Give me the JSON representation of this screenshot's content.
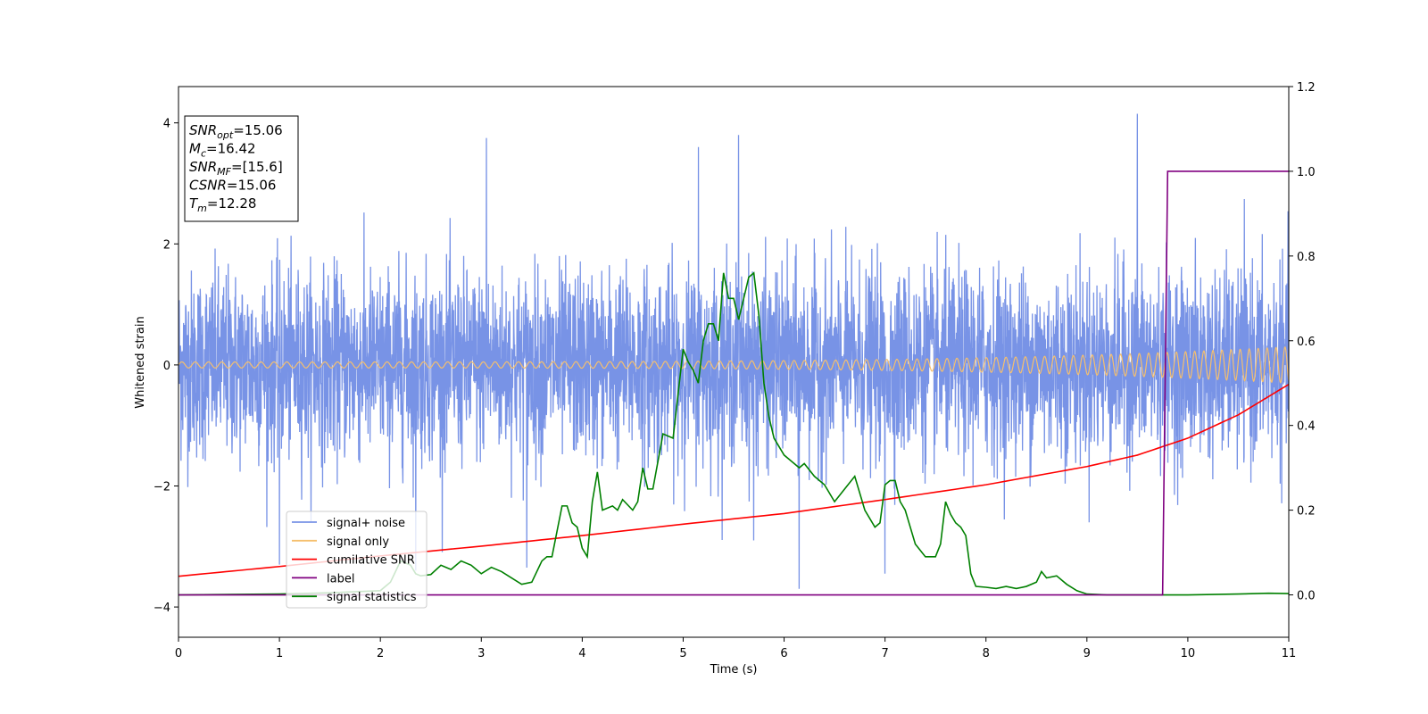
{
  "chart_data": {
    "type": "line",
    "xlabel": "Time (s)",
    "ylabel": "Whitened strain",
    "xlim": [
      0,
      11
    ],
    "ylim": [
      -4.5,
      4.6
    ],
    "y2lim": [
      -0.1,
      1.2
    ],
    "x_ticks": [
      "0",
      "1",
      "2",
      "3",
      "4",
      "5",
      "6",
      "7",
      "8",
      "9",
      "10",
      "11"
    ],
    "y_ticks": [
      "4",
      "2",
      "0",
      "−2",
      "−4"
    ],
    "y2_ticks": [
      "1.2",
      "1.0",
      "0.8",
      "0.6",
      "0.4",
      "0.2",
      "0.0"
    ],
    "grid": false,
    "legend_position": "lower-left",
    "info_box": {
      "position": "top-left",
      "lines": [
        {
          "symbol": "SNR",
          "sub": "opt",
          "text": "=15.06"
        },
        {
          "symbol": "M",
          "sub": "c",
          "text": "=16.42"
        },
        {
          "symbol": "SNR",
          "sub": "MF",
          "text": "=[15.6]"
        },
        {
          "symbol": "CSNR",
          "sub": "",
          "text": "=15.06"
        },
        {
          "symbol": "T",
          "sub": "m",
          "text": "=12.28"
        }
      ]
    },
    "series": [
      {
        "name": "signal+ noise",
        "color": "#7893e6",
        "axis": "left",
        "kind": "noise",
        "typical_range": [
          -2.0,
          2.0
        ],
        "extremes": [
          [
            5.55,
            3.8
          ],
          [
            3.05,
            3.75
          ],
          [
            9.5,
            4.15
          ],
          [
            5.15,
            3.6
          ],
          [
            6.15,
            -3.7
          ],
          [
            1.0,
            -3.3
          ],
          [
            7.0,
            -3.45
          ],
          [
            2.35,
            -3.4
          ],
          [
            3.45,
            -3.35
          ],
          [
            5.7,
            -2.9
          ]
        ]
      },
      {
        "name": "signal only",
        "color": "#f5bf6e",
        "axis": "left",
        "kind": "chirp",
        "amplitude_start": 0.05,
        "amplitude_end": 0.3
      },
      {
        "name": "cumilative SNR",
        "color": "#ff0000",
        "axis": "right",
        "kind": "cumulative",
        "x": [
          0,
          1,
          2,
          3,
          4,
          5,
          6,
          7,
          8,
          9,
          9.5,
          10,
          10.5,
          11
        ],
        "y": [
          0.044,
          0.067,
          0.092,
          0.115,
          0.14,
          0.167,
          0.192,
          0.225,
          0.26,
          0.303,
          0.33,
          0.37,
          0.425,
          0.497
        ]
      },
      {
        "name": "label",
        "color": "#800080",
        "axis": "right",
        "kind": "step",
        "x": [
          0,
          9.75,
          9.8,
          11
        ],
        "y": [
          0.0,
          0.0,
          1.0,
          1.0
        ]
      },
      {
        "name": "signal statistics",
        "color": "#008000",
        "axis": "right",
        "kind": "line",
        "x": [
          0,
          1.0,
          1.5,
          2.0,
          2.1,
          2.2,
          2.3,
          2.35,
          2.4,
          2.5,
          2.6,
          2.7,
          2.8,
          2.9,
          3.0,
          3.1,
          3.2,
          3.3,
          3.4,
          3.5,
          3.6,
          3.65,
          3.7,
          3.8,
          3.85,
          3.9,
          3.95,
          4.0,
          4.05,
          4.1,
          4.15,
          4.2,
          4.3,
          4.35,
          4.4,
          4.5,
          4.55,
          4.6,
          4.65,
          4.7,
          4.8,
          4.9,
          5.0,
          5.05,
          5.1,
          5.15,
          5.2,
          5.25,
          5.3,
          5.35,
          5.4,
          5.45,
          5.5,
          5.55,
          5.6,
          5.65,
          5.7,
          5.75,
          5.8,
          5.85,
          5.9,
          5.95,
          6.0,
          6.05,
          6.1,
          6.15,
          6.2,
          6.3,
          6.4,
          6.5,
          6.6,
          6.7,
          6.8,
          6.9,
          6.95,
          7.0,
          7.05,
          7.1,
          7.15,
          7.2,
          7.3,
          7.4,
          7.5,
          7.55,
          7.6,
          7.65,
          7.7,
          7.75,
          7.8,
          7.85,
          7.9,
          8.0,
          8.1,
          8.2,
          8.3,
          8.4,
          8.5,
          8.55,
          8.6,
          8.7,
          8.8,
          8.9,
          9.0,
          9.2,
          9.5,
          9.8,
          10.0,
          10.5,
          10.8,
          11.0
        ],
        "y": [
          0.0,
          0.002,
          0.005,
          0.01,
          0.03,
          0.08,
          0.07,
          0.05,
          0.045,
          0.048,
          0.07,
          0.06,
          0.08,
          0.07,
          0.05,
          0.065,
          0.055,
          0.04,
          0.025,
          0.03,
          0.08,
          0.09,
          0.09,
          0.21,
          0.21,
          0.17,
          0.16,
          0.11,
          0.09,
          0.22,
          0.29,
          0.2,
          0.21,
          0.2,
          0.225,
          0.2,
          0.22,
          0.3,
          0.25,
          0.25,
          0.38,
          0.37,
          0.58,
          0.55,
          0.53,
          0.5,
          0.6,
          0.64,
          0.64,
          0.6,
          0.76,
          0.7,
          0.7,
          0.65,
          0.7,
          0.75,
          0.76,
          0.66,
          0.5,
          0.42,
          0.37,
          0.35,
          0.33,
          0.32,
          0.31,
          0.3,
          0.31,
          0.28,
          0.26,
          0.22,
          0.25,
          0.28,
          0.2,
          0.16,
          0.17,
          0.26,
          0.27,
          0.27,
          0.22,
          0.2,
          0.12,
          0.09,
          0.09,
          0.12,
          0.22,
          0.19,
          0.17,
          0.16,
          0.14,
          0.05,
          0.02,
          0.018,
          0.015,
          0.02,
          0.015,
          0.02,
          0.03,
          0.055,
          0.04,
          0.045,
          0.025,
          0.01,
          0.002,
          0.0,
          0.0,
          0.0,
          0.0,
          0.002,
          0.004,
          0.003
        ]
      }
    ]
  }
}
